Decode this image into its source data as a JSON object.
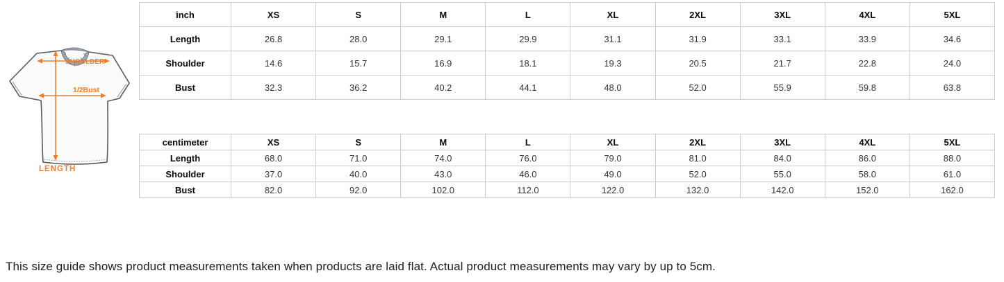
{
  "note": {
    "text": "This size guide shows product measurements taken when products are laid flat. Actual product measurements may vary by up to 5cm."
  },
  "diagram": {
    "shoulder_label": "SHOULDER",
    "bust_label": "1/2Bust",
    "length_label": "LENGTH",
    "arrow_color": "#EF7D2B",
    "outline_color": "#55585E",
    "shirt_fill": "#FBFBFC",
    "collar_fill": "#A3A9B3"
  },
  "tables": [
    {
      "unit_header": "inch",
      "size_headers": [
        "XS",
        "S",
        "M",
        "L",
        "XL",
        "2XL",
        "3XL",
        "4XL",
        "5XL"
      ],
      "rows": [
        {
          "label": "Length",
          "values": [
            "26.8",
            "28.0",
            "29.1",
            "29.9",
            "31.1",
            "31.9",
            "33.1",
            "33.9",
            "34.6"
          ]
        },
        {
          "label": "Shoulder",
          "values": [
            "14.6",
            "15.7",
            "16.9",
            "18.1",
            "19.3",
            "20.5",
            "21.7",
            "22.8",
            "24.0"
          ]
        },
        {
          "label": "Bust",
          "values": [
            "32.3",
            "36.2",
            "40.2",
            "44.1",
            "48.0",
            "52.0",
            "55.9",
            "59.8",
            "63.8"
          ]
        }
      ]
    },
    {
      "unit_header": "centimeter",
      "size_headers": [
        "XS",
        "S",
        "M",
        "L",
        "XL",
        "2XL",
        "3XL",
        "4XL",
        "5XL"
      ],
      "rows": [
        {
          "label": "Length",
          "values": [
            "68.0",
            "71.0",
            "74.0",
            "76.0",
            "79.0",
            "81.0",
            "84.0",
            "86.0",
            "88.0"
          ]
        },
        {
          "label": "Shoulder",
          "values": [
            "37.0",
            "40.0",
            "43.0",
            "46.0",
            "49.0",
            "52.0",
            "55.0",
            "58.0",
            "61.0"
          ]
        },
        {
          "label": "Bust",
          "values": [
            "82.0",
            "92.0",
            "102.0",
            "112.0",
            "122.0",
            "132.0",
            "142.0",
            "152.0",
            "162.0"
          ]
        }
      ]
    }
  ]
}
